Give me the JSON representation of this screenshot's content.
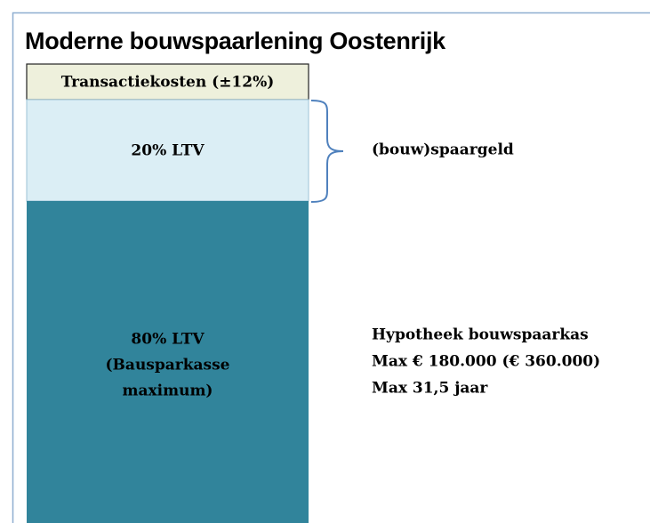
{
  "header": {
    "title": "Moderne bouwspaarlening Oostenrijk"
  },
  "cost_box": {
    "label": "Transactiekosten (±12%)"
  },
  "segments": [
    {
      "lines": [
        "20% LTV"
      ]
    },
    {
      "lines": [
        "80% LTV",
        "(Bausparkasse",
        "maximum)"
      ]
    }
  ],
  "brace_label": "(bouw)spaargeld",
  "notes": [
    "Hypotheek bouwspaarkas",
    "Max € 180.000 (€ 360.000)",
    "Max 31,5 jaar"
  ]
}
